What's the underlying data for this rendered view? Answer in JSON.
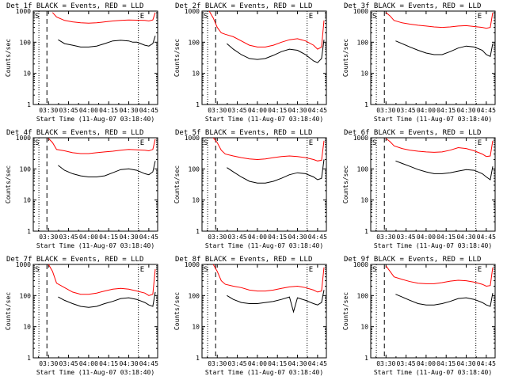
{
  "chart_data": [
    {
      "type": "line",
      "title": "Det 1f BLACK = Events, RED = LLD",
      "xlabel": "Start Time (11-Aug-07 03:18:40)",
      "ylabel": "Counts/sec",
      "yscale": "log",
      "ylim": [
        1,
        1000
      ],
      "xticks": [
        "03:30",
        "03:45",
        "04:00",
        "04:15",
        "04:30",
        "04:45"
      ],
      "yticks": [
        "1",
        "10",
        "100",
        "1000"
      ],
      "markers": [
        "S",
        "E"
      ],
      "series": [
        {
          "name": "Events",
          "color": "#000000",
          "x": [
            3.62,
            3.7,
            3.8,
            3.9,
            4.0,
            4.1,
            4.2,
            4.3,
            4.4,
            4.5,
            4.55,
            4.6,
            4.65,
            4.7,
            4.75,
            4.8,
            4.83
          ],
          "y": [
            120,
            90,
            80,
            70,
            70,
            75,
            90,
            110,
            115,
            110,
            100,
            100,
            90,
            80,
            75,
            90,
            160
          ]
        },
        {
          "name": "LLD",
          "color": "#ff0000",
          "x": [
            3.55,
            3.6,
            3.7,
            3.8,
            3.9,
            4.0,
            4.1,
            4.2,
            4.3,
            4.4,
            4.5,
            4.6,
            4.7,
            4.75,
            4.8,
            4.83
          ],
          "y": [
            900,
            650,
            500,
            450,
            420,
            410,
            420,
            450,
            480,
            500,
            520,
            510,
            500,
            480,
            520,
            900
          ]
        }
      ]
    },
    {
      "type": "line",
      "title": "Det 2f BLACK = Events, RED = LLD",
      "xlabel": "Start Time (11-Aug-07 03:18:40)",
      "ylabel": "Counts/sec",
      "yscale": "log",
      "ylim": [
        1,
        1000
      ],
      "xticks": [
        "03:30",
        "03:45",
        "04:00",
        "04:15",
        "04:30",
        "04:45"
      ],
      "yticks": [
        "1",
        "10",
        "100",
        "1000"
      ],
      "markers": [
        "S",
        "E"
      ],
      "series": [
        {
          "name": "Events",
          "color": "#000000",
          "x": [
            3.62,
            3.7,
            3.8,
            3.9,
            4.0,
            4.1,
            4.2,
            4.3,
            4.4,
            4.5,
            4.6,
            4.7,
            4.75,
            4.8,
            4.83
          ],
          "y": [
            90,
            60,
            40,
            30,
            28,
            30,
            38,
            50,
            60,
            55,
            40,
            25,
            22,
            30,
            120
          ]
        },
        {
          "name": "LLD",
          "color": "#ff0000",
          "x": [
            3.4,
            3.45,
            3.5,
            3.55,
            3.6,
            3.7,
            3.8,
            3.9,
            4.0,
            4.1,
            4.2,
            4.3,
            4.4,
            4.5,
            4.6,
            4.7,
            4.75,
            4.8,
            4.83
          ],
          "y": [
            1000,
            600,
            300,
            200,
            180,
            150,
            110,
            80,
            70,
            70,
            80,
            100,
            120,
            130,
            110,
            80,
            60,
            70,
            500
          ]
        }
      ]
    },
    {
      "type": "line",
      "title": "Det 3f BLACK = Events, RED = LLD",
      "xlabel": "Start Time (11-Aug-07 03:18:40)",
      "ylabel": "Counts/sec",
      "yscale": "log",
      "ylim": [
        1,
        1000
      ],
      "xticks": [
        "03:30",
        "03:45",
        "04:00",
        "04:15",
        "04:30",
        "04:45"
      ],
      "yticks": [
        "1",
        "10",
        "100",
        "1000"
      ],
      "markers": [
        "S",
        "E"
      ],
      "series": [
        {
          "name": "Events",
          "color": "#000000",
          "x": [
            3.62,
            3.7,
            3.8,
            3.9,
            4.0,
            4.1,
            4.2,
            4.3,
            4.4,
            4.5,
            4.6,
            4.7,
            4.75,
            4.8,
            4.83
          ],
          "y": [
            110,
            90,
            70,
            55,
            45,
            40,
            40,
            50,
            65,
            75,
            70,
            55,
            40,
            35,
            90
          ]
        },
        {
          "name": "LLD",
          "color": "#ff0000",
          "x": [
            3.5,
            3.55,
            3.6,
            3.7,
            3.8,
            3.9,
            4.0,
            4.1,
            4.2,
            4.3,
            4.4,
            4.5,
            4.6,
            4.7,
            4.75,
            4.8,
            4.83
          ],
          "y": [
            900,
            700,
            500,
            420,
            380,
            350,
            330,
            310,
            300,
            310,
            330,
            340,
            320,
            300,
            280,
            300,
            900
          ]
        }
      ]
    },
    {
      "type": "line",
      "title": "Det 4f BLACK = Events, RED = LLD",
      "xlabel": "Start Time (11-Aug-07 03:18:40)",
      "ylabel": "Counts/sec",
      "yscale": "log",
      "ylim": [
        1,
        1000
      ],
      "xticks": [
        "03:30",
        "03:45",
        "04:00",
        "04:15",
        "04:30",
        "04:45"
      ],
      "yticks": [
        "1",
        "10",
        "100",
        "1000"
      ],
      "markers": [
        "S",
        "E"
      ],
      "series": [
        {
          "name": "Events",
          "color": "#000000",
          "x": [
            3.62,
            3.7,
            3.8,
            3.9,
            4.0,
            4.1,
            4.2,
            4.3,
            4.4,
            4.5,
            4.6,
            4.7,
            4.75,
            4.8,
            4.83
          ],
          "y": [
            130,
            90,
            70,
            60,
            55,
            55,
            60,
            75,
            95,
            100,
            90,
            70,
            65,
            80,
            180
          ]
        },
        {
          "name": "LLD",
          "color": "#ff0000",
          "x": [
            3.5,
            3.55,
            3.6,
            3.7,
            3.8,
            3.9,
            4.0,
            4.1,
            4.2,
            4.3,
            4.4,
            4.5,
            4.6,
            4.7,
            4.75,
            4.8,
            4.83
          ],
          "y": [
            950,
            700,
            420,
            380,
            330,
            310,
            310,
            330,
            350,
            370,
            400,
            420,
            410,
            400,
            380,
            420,
            900
          ]
        }
      ]
    },
    {
      "type": "line",
      "title": "Det 5f BLACK = Events, RED = LLD",
      "xlabel": "Start Time (11-Aug-07 03:18:40)",
      "ylabel": "Counts/sec",
      "yscale": "log",
      "ylim": [
        1,
        1000
      ],
      "xticks": [
        "03:30",
        "03:45",
        "04:00",
        "04:15",
        "04:30",
        "04:45"
      ],
      "yticks": [
        "1",
        "10",
        "100",
        "1000"
      ],
      "markers": [
        "S",
        "E"
      ],
      "series": [
        {
          "name": "Events",
          "color": "#000000",
          "x": [
            3.62,
            3.7,
            3.8,
            3.9,
            4.0,
            4.1,
            4.2,
            4.3,
            4.4,
            4.5,
            4.6,
            4.7,
            4.75,
            4.8,
            4.83
          ],
          "y": [
            110,
            80,
            55,
            40,
            35,
            35,
            40,
            50,
            65,
            75,
            70,
            55,
            45,
            50,
            200
          ]
        },
        {
          "name": "LLD",
          "color": "#ff0000",
          "x": [
            3.45,
            3.5,
            3.55,
            3.6,
            3.7,
            3.8,
            3.9,
            4.0,
            4.1,
            4.2,
            4.3,
            4.4,
            4.5,
            4.6,
            4.7,
            4.75,
            4.8,
            4.83
          ],
          "y": [
            1000,
            700,
            400,
            300,
            260,
            230,
            210,
            200,
            210,
            230,
            250,
            260,
            250,
            230,
            200,
            180,
            190,
            800
          ]
        }
      ]
    },
    {
      "type": "line",
      "title": "Det 6f BLACK = Events, RED = LLD",
      "xlabel": "Start Time (11-Aug-07 03:18:40)",
      "ylabel": "Counts/sec",
      "yscale": "log",
      "ylim": [
        1,
        1000
      ],
      "xticks": [
        "03:30",
        "03:45",
        "04:00",
        "04:15",
        "04:30",
        "04:45"
      ],
      "yticks": [
        "1",
        "10",
        "100",
        "1000"
      ],
      "markers": [
        "S",
        "E"
      ],
      "series": [
        {
          "name": "Events",
          "color": "#000000",
          "x": [
            3.62,
            3.7,
            3.8,
            3.9,
            4.0,
            4.1,
            4.2,
            4.3,
            4.4,
            4.5,
            4.6,
            4.7,
            4.75,
            4.8,
            4.83
          ],
          "y": [
            180,
            150,
            120,
            95,
            80,
            70,
            70,
            75,
            85,
            95,
            90,
            70,
            55,
            45,
            120
          ]
        },
        {
          "name": "LLD",
          "color": "#ff0000",
          "x": [
            3.5,
            3.55,
            3.6,
            3.7,
            3.8,
            3.9,
            4.0,
            4.1,
            4.2,
            4.3,
            4.4,
            4.5,
            4.6,
            4.7,
            4.75,
            4.8,
            4.83
          ],
          "y": [
            950,
            750,
            550,
            450,
            400,
            370,
            350,
            340,
            350,
            400,
            480,
            450,
            380,
            300,
            250,
            260,
            800
          ]
        }
      ]
    },
    {
      "type": "line",
      "title": "Det 7f BLACK = Events, RED = LLD",
      "xlabel": "Start Time (11-Aug-07 03:18:40)",
      "ylabel": "Counts/sec",
      "yscale": "log",
      "ylim": [
        1,
        1000
      ],
      "xticks": [
        "03:30",
        "03:45",
        "04:00",
        "04:15",
        "04:30",
        "04:45"
      ],
      "yticks": [
        "1",
        "10",
        "100",
        "1000"
      ],
      "markers": [
        "S",
        "E"
      ],
      "series": [
        {
          "name": "Events",
          "color": "#000000",
          "x": [
            3.62,
            3.7,
            3.8,
            3.9,
            4.0,
            4.1,
            4.2,
            4.3,
            4.4,
            4.5,
            4.6,
            4.7,
            4.75,
            4.8,
            4.83
          ],
          "y": [
            90,
            70,
            55,
            45,
            42,
            45,
            55,
            65,
            80,
            85,
            75,
            60,
            50,
            45,
            130
          ]
        },
        {
          "name": "LLD",
          "color": "#ff0000",
          "x": [
            3.5,
            3.55,
            3.6,
            3.7,
            3.8,
            3.9,
            4.0,
            4.1,
            4.2,
            4.3,
            4.4,
            4.5,
            4.6,
            4.7,
            4.75,
            4.8,
            4.83
          ],
          "y": [
            1000,
            600,
            250,
            180,
            130,
            110,
            110,
            120,
            140,
            160,
            170,
            160,
            140,
            120,
            100,
            110,
            700
          ]
        }
      ]
    },
    {
      "type": "line",
      "title": "Det 8f BLACK = Events, RED = LLD",
      "xlabel": "Start Time (11-Aug-07 03:18:40)",
      "ylabel": "Counts/sec",
      "yscale": "log",
      "ylim": [
        1,
        1000
      ],
      "xticks": [
        "03:30",
        "03:45",
        "04:00",
        "04:15",
        "04:30",
        "04:45"
      ],
      "yticks": [
        "1",
        "10",
        "100",
        "1000"
      ],
      "markers": [
        "S",
        "E"
      ],
      "series": [
        {
          "name": "Events",
          "color": "#000000",
          "x": [
            3.62,
            3.7,
            3.8,
            3.9,
            4.0,
            4.1,
            4.2,
            4.3,
            4.4,
            4.45,
            4.5,
            4.6,
            4.7,
            4.75,
            4.8,
            4.83
          ],
          "y": [
            100,
            75,
            60,
            55,
            55,
            60,
            65,
            75,
            90,
            30,
            85,
            70,
            55,
            50,
            60,
            150
          ]
        },
        {
          "name": "LLD",
          "color": "#ff0000",
          "x": [
            3.45,
            3.5,
            3.55,
            3.6,
            3.7,
            3.8,
            3.9,
            4.0,
            4.1,
            4.2,
            4.3,
            4.4,
            4.5,
            4.6,
            4.7,
            4.75,
            4.8,
            4.83
          ],
          "y": [
            1000,
            600,
            300,
            230,
            200,
            180,
            150,
            140,
            140,
            150,
            170,
            190,
            200,
            180,
            150,
            130,
            140,
            800
          ]
        }
      ]
    },
    {
      "type": "line",
      "title": "Det 9f BLACK = Events, RED = LLD",
      "xlabel": "Start Time (11-Aug-07 03:18:40)",
      "ylabel": "Counts/sec",
      "yscale": "log",
      "ylim": [
        1,
        1000
      ],
      "xticks": [
        "03:30",
        "03:45",
        "04:00",
        "04:15",
        "04:30",
        "04:45"
      ],
      "yticks": [
        "1",
        "10",
        "100",
        "1000"
      ],
      "markers": [
        "S",
        "E"
      ],
      "series": [
        {
          "name": "Events",
          "color": "#000000",
          "x": [
            3.62,
            3.7,
            3.8,
            3.9,
            4.0,
            4.1,
            4.2,
            4.3,
            4.4,
            4.5,
            4.6,
            4.7,
            4.75,
            4.8,
            4.83
          ],
          "y": [
            110,
            90,
            70,
            55,
            50,
            50,
            55,
            65,
            80,
            85,
            75,
            60,
            50,
            45,
            120
          ]
        },
        {
          "name": "LLD",
          "color": "#ff0000",
          "x": [
            3.5,
            3.55,
            3.6,
            3.7,
            3.8,
            3.9,
            4.0,
            4.1,
            4.2,
            4.3,
            4.4,
            4.5,
            4.6,
            4.7,
            4.75,
            4.8,
            4.83
          ],
          "y": [
            900,
            600,
            400,
            330,
            280,
            250,
            240,
            240,
            260,
            290,
            310,
            300,
            270,
            230,
            200,
            210,
            800
          ]
        }
      ]
    }
  ]
}
